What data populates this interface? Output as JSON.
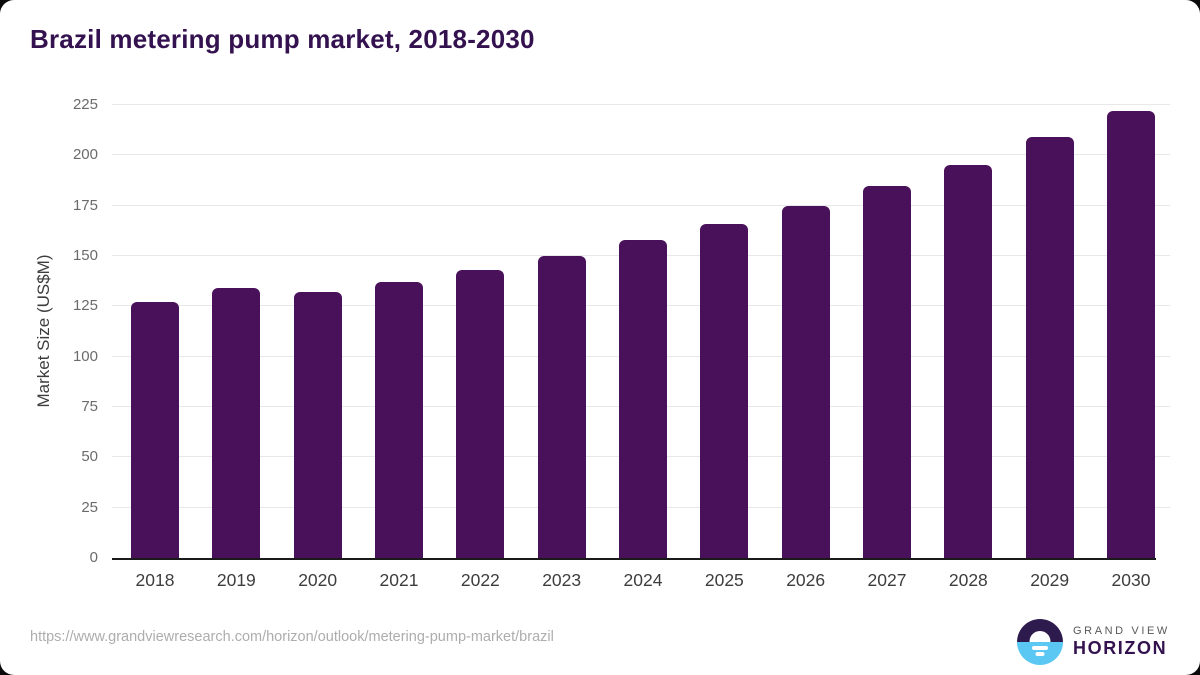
{
  "card": {
    "title": "Brazil metering pump market, 2018-2030",
    "source_url": "https://www.grandviewresearch.com/horizon/outlook/metering-pump-market/brazil"
  },
  "chart_data": {
    "type": "bar",
    "title": "Brazil metering pump market, 2018-2030",
    "categories": [
      "2018",
      "2019",
      "2020",
      "2021",
      "2022",
      "2023",
      "2024",
      "2025",
      "2026",
      "2027",
      "2028",
      "2029",
      "2030"
    ],
    "values": [
      127,
      134,
      132,
      137,
      143,
      150,
      158,
      166,
      175,
      185,
      195,
      209,
      222
    ],
    "xlabel": "",
    "ylabel": "Market Size (US$M)",
    "ylim": [
      0,
      225
    ],
    "ytick_step": 25,
    "grid": true,
    "legend": "none",
    "bar_color": "#4a115b"
  },
  "logo": {
    "brand_top": "GRAND VIEW",
    "brand_bottom": "HORIZON"
  },
  "colors": {
    "title": "#33124f",
    "bar": "#4a115b",
    "gridline": "#e8e8e8",
    "baseline": "#1a1a1a",
    "y_tick": "#6b6b6b",
    "x_tick": "#3d3d3d",
    "url": "#adadad",
    "logo_dark": "#2d1b4e",
    "logo_blue": "#5bc8f3"
  }
}
